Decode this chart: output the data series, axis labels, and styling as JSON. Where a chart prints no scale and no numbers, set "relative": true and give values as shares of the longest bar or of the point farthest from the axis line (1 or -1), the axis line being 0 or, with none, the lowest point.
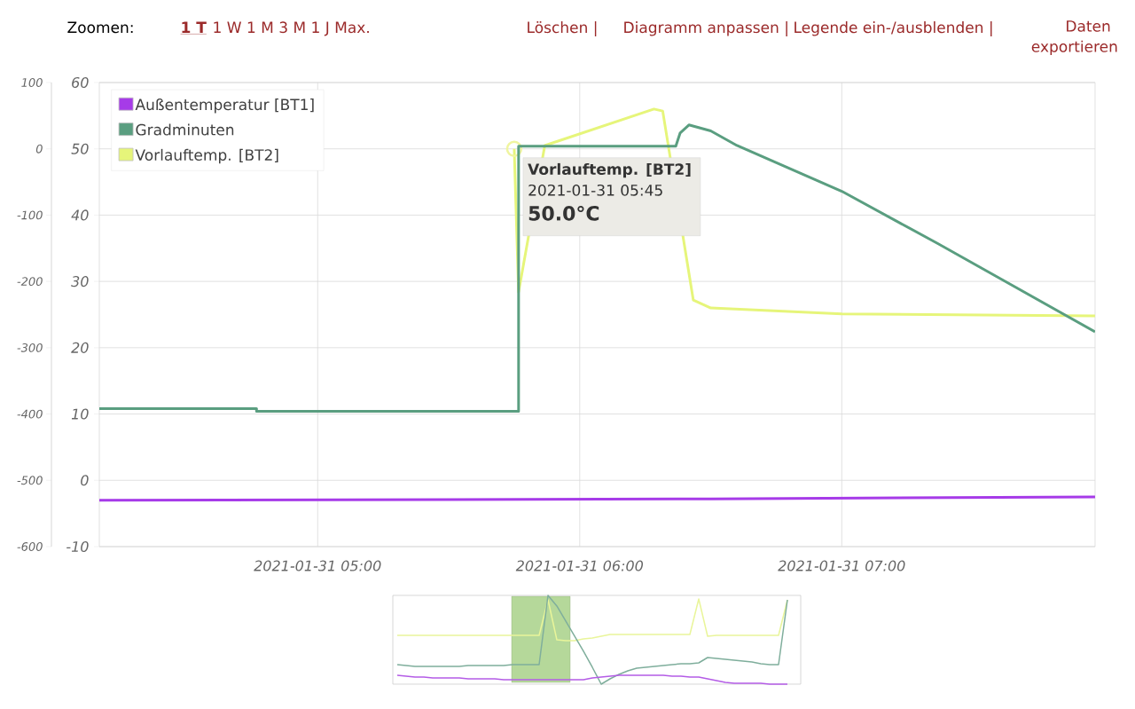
{
  "chart_data": [
    {
      "type": "line",
      "legend": "top left",
      "grid": true,
      "xlim": [
        "2021-01-31T04:10",
        "2021-01-31T07:58"
      ],
      "xticks": [
        {
          "value": "2021-01-31T05:00",
          "label": "2021-01-31 05:00"
        },
        {
          "value": "2021-01-31T06:00",
          "label": "2021-01-31 06:00"
        },
        {
          "value": "2021-01-31T07:00",
          "label": "2021-01-31 07:00"
        }
      ],
      "ylim": [
        -10,
        60
      ],
      "yticks": [
        -10,
        0,
        10,
        20,
        30,
        40,
        50,
        60
      ],
      "y2lim": [
        -600,
        100
      ],
      "y2ticks": [
        -600,
        -500,
        -400,
        -300,
        -200,
        -100,
        0,
        100
      ],
      "series": [
        {
          "name": "Außentemperatur [BT1]",
          "color": "#a63be8",
          "x": [
            "2021-01-31T04:10",
            "2021-01-31T05:30",
            "2021-01-31T06:30",
            "2021-01-31T07:58"
          ],
          "values": [
            -3.0,
            -2.9,
            -2.8,
            -2.5
          ]
        },
        {
          "name": "Gradminuten",
          "color": "#5a9e80",
          "axis": "y2",
          "x": [
            "2021-01-31T04:10",
            "2021-01-31T04:46",
            "2021-01-31T04:46",
            "2021-01-31T05:46",
            "2021-01-31T05:46",
            "2021-01-31T06:22",
            "2021-01-31T06:23",
            "2021-01-31T06:25",
            "2021-01-31T06:30",
            "2021-01-31T06:36",
            "2021-01-31T07:00",
            "2021-01-31T07:22",
            "2021-01-31T07:58"
          ],
          "values": [
            -392,
            -392,
            -396,
            -396,
            4,
            4,
            24,
            36,
            27,
            5,
            -64,
            -143,
            -276
          ]
        },
        {
          "name": "Vorlauftemp. [BT2]",
          "color": "#e6f57a",
          "x": [
            "2021-01-31T05:45",
            "2021-01-31T05:46",
            "2021-01-31T05:52",
            "2021-01-31T06:17",
            "2021-01-31T06:19",
            "2021-01-31T06:26",
            "2021-01-31T06:30",
            "2021-01-31T07:00",
            "2021-01-31T07:58"
          ],
          "values": [
            50.0,
            28.4,
            50.5,
            56.0,
            55.7,
            27.2,
            26.0,
            25.1,
            24.8
          ]
        }
      ],
      "annotations": [
        "Zoomen:",
        "1 T",
        "1 W 1 M 3 M 1 J Max.",
        "Löschen |",
        "Diagramm anpassen |",
        "Legende ein-/ausblenden |",
        "Daten exportieren",
        {
          "text": "Vorlauftemp. [BT2]",
          "x": "2021-01-31T05:45",
          "y": 50.0
        },
        "2021-01-31 05:45",
        "50.0°C"
      ]
    },
    {
      "type": "line",
      "relative": true,
      "categories": [
        null,
        null,
        null,
        null,
        null,
        null,
        null,
        null,
        null,
        null,
        null,
        null,
        null,
        null,
        null,
        null,
        null,
        null,
        null,
        null,
        null,
        null,
        null,
        null,
        null,
        null,
        null,
        null,
        null,
        null,
        null,
        null,
        null,
        null,
        null,
        null,
        null,
        null,
        null,
        null,
        null,
        null,
        null,
        null,
        null
      ],
      "series": [
        {
          "color": "#e9f59a",
          "values": [
            0.55,
            0.55,
            0.55,
            0.55,
            0.55,
            0.55,
            0.55,
            0.55,
            0.55,
            0.55,
            0.55,
            0.55,
            0.55,
            0.55,
            0.55,
            0.55,
            0.55,
            0.95,
            0.5,
            0.49,
            0.49,
            0.51,
            0.52,
            0.54,
            0.56,
            0.56,
            0.56,
            0.56,
            0.56,
            0.56,
            0.56,
            0.56,
            0.56,
            0.56,
            0.96,
            0.54,
            0.55,
            0.55,
            0.55,
            0.55,
            0.55,
            0.55,
            0.55,
            0.55,
            0.95
          ]
        },
        {
          "color": "#7fae9c",
          "values": [
            0.22,
            0.21,
            0.2,
            0.2,
            0.2,
            0.2,
            0.2,
            0.2,
            0.21,
            0.21,
            0.21,
            0.21,
            0.21,
            0.22,
            0.22,
            0.22,
            0.22,
            1.0,
            0.88,
            0.71,
            0.54,
            0.37,
            0.19,
            0.0,
            0.06,
            0.11,
            0.15,
            0.18,
            0.19,
            0.2,
            0.21,
            0.22,
            0.23,
            0.23,
            0.24,
            0.3,
            0.29,
            0.28,
            0.27,
            0.26,
            0.25,
            0.23,
            0.22,
            0.22,
            0.95
          ]
        },
        {
          "color": "#b45ce6",
          "values": [
            0.1,
            0.09,
            0.08,
            0.08,
            0.07,
            0.07,
            0.07,
            0.07,
            0.06,
            0.06,
            0.06,
            0.06,
            0.05,
            0.05,
            0.05,
            0.05,
            0.05,
            0.05,
            0.05,
            0.05,
            0.05,
            0.05,
            0.07,
            0.08,
            0.09,
            0.1,
            0.1,
            0.1,
            0.1,
            0.1,
            0.1,
            0.09,
            0.09,
            0.08,
            0.08,
            0.06,
            0.04,
            0.02,
            0.01,
            0.01,
            0.01,
            0.01,
            0.0,
            0.0,
            0.0
          ]
        }
      ]
    }
  ]
}
